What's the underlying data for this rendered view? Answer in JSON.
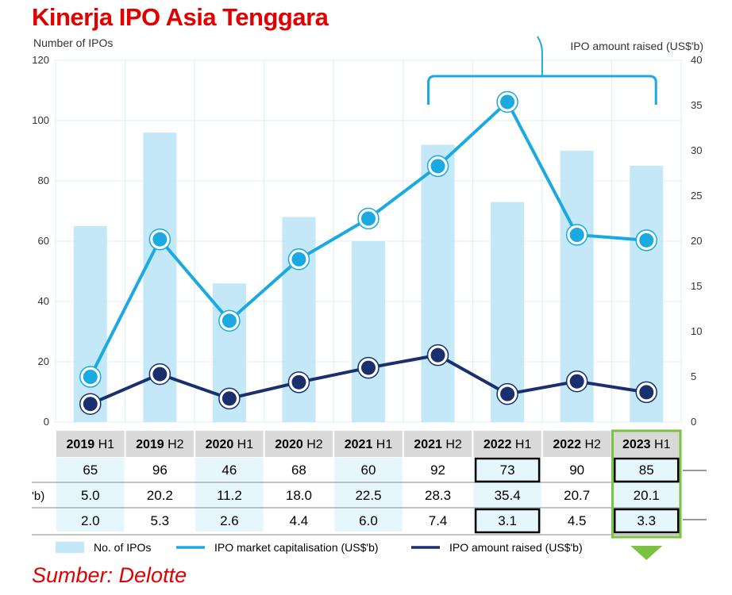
{
  "title": "Kinerja IPO Asia Tenggara",
  "source": "Sumber: Delotte",
  "colors": {
    "title_red": "#e00000",
    "bar": "#c4e8f8",
    "market_cap": "#1aa9e1",
    "amount_raised": "#1a2f6e",
    "highlight_green": "#7cc242",
    "header_bg": "#d9d9d9",
    "grid": "#dcecf5"
  },
  "chart_data": {
    "type": "bar",
    "categories": [
      {
        "year": "2019",
        "half": "H1"
      },
      {
        "year": "2019",
        "half": "H2"
      },
      {
        "year": "2020",
        "half": "H1"
      },
      {
        "year": "2020",
        "half": "H2"
      },
      {
        "year": "2021",
        "half": "H1"
      },
      {
        "year": "2021",
        "half": "H2"
      },
      {
        "year": "2022",
        "half": "H1"
      },
      {
        "year": "2022",
        "half": "H2"
      },
      {
        "year": "2023",
        "half": "H1"
      }
    ],
    "left_axis": {
      "label": "Number of IPOs",
      "range": [
        0,
        120
      ],
      "ticks": [
        0,
        20,
        40,
        60,
        80,
        100,
        120
      ]
    },
    "right_axis": {
      "label": "IPO amount raised (US$'b)",
      "range": [
        0,
        40
      ],
      "ticks": [
        0,
        5,
        10,
        15,
        20,
        25,
        30,
        35,
        40
      ]
    },
    "series": [
      {
        "name": "No. of IPOs",
        "kind": "bar",
        "axis": "left",
        "values": [
          65,
          96,
          46,
          68,
          60,
          92,
          73,
          90,
          85
        ],
        "labels": [
          "65",
          "96",
          "46",
          "68",
          "60",
          "92",
          "73",
          "90",
          "85"
        ],
        "row_label": ""
      },
      {
        "name": "IPO market capitalisation (US$'b)",
        "kind": "line",
        "axis": "right",
        "values": [
          5.0,
          20.2,
          11.2,
          18.0,
          22.5,
          28.3,
          35.4,
          20.7,
          20.1
        ],
        "labels": [
          "5.0",
          "20.2",
          "11.2",
          "18.0",
          "22.5",
          "28.3",
          "35.4",
          "20.7",
          "20.1"
        ],
        "row_label": "'b)"
      },
      {
        "name": "IPO amount raised (US$'b)",
        "kind": "line",
        "axis": "right",
        "values": [
          2.0,
          5.3,
          2.6,
          4.4,
          6.0,
          7.4,
          3.1,
          4.5,
          3.3
        ],
        "labels": [
          "2.0",
          "5.3",
          "2.6",
          "4.4",
          "6.0",
          "7.4",
          "3.1",
          "4.5",
          "3.3"
        ],
        "row_label": ""
      }
    ],
    "boxed_cells": [
      [
        0,
        6
      ],
      [
        0,
        8
      ],
      [
        2,
        6
      ],
      [
        2,
        8
      ]
    ],
    "highlight_column": 8,
    "bracket_columns": [
      5,
      8
    ],
    "grid": true,
    "legend_position": "bottom"
  }
}
